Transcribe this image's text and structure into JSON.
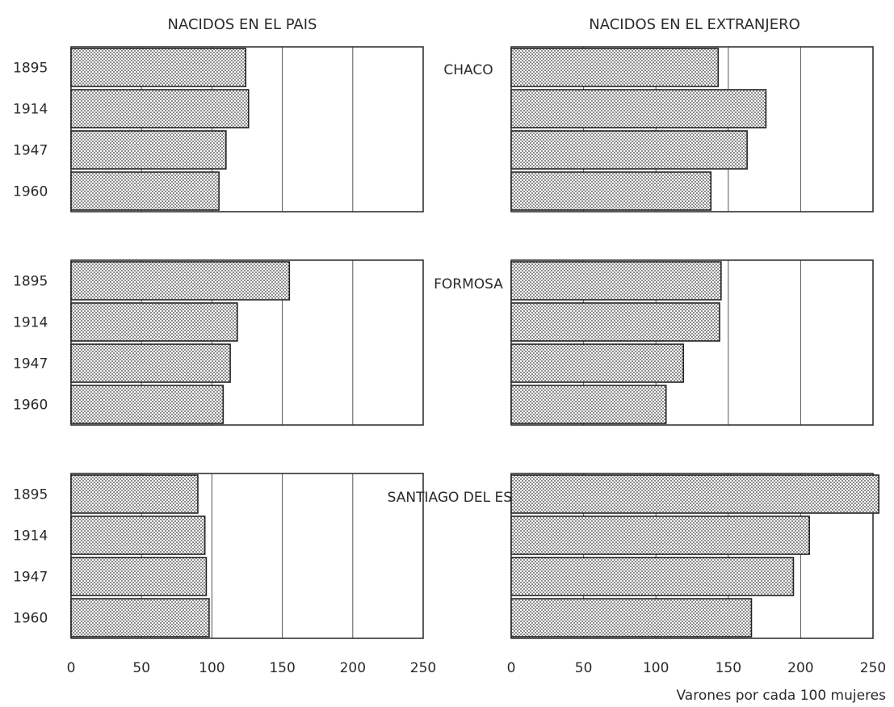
{
  "headers": {
    "left": "NACIDOS EN EL PAIS",
    "right": "NACIDOS EN EL EXTRANJERO"
  },
  "axis_note": "Varones por cada 100 mujeres",
  "colors": {
    "bar_fill": "#ffffff",
    "bar_pattern": "#3a3a3a",
    "frame": "#333333",
    "text": "#2a2a2a"
  },
  "chart_data": [
    {
      "type": "bar",
      "orientation": "horizontal",
      "province": "CHACO",
      "panel": "NACIDOS EN EL PAIS",
      "categories": [
        "1895",
        "1914",
        "1947",
        "1960"
      ],
      "values": [
        124,
        126,
        110,
        105
      ],
      "xlim": [
        0,
        250
      ],
      "xticks": [
        0,
        50,
        100,
        150,
        200,
        250
      ],
      "grid": true
    },
    {
      "type": "bar",
      "orientation": "horizontal",
      "province": "CHACO",
      "panel": "NACIDOS EN EL EXTRANJERO",
      "categories": [
        "1895",
        "1914",
        "1947",
        "1960"
      ],
      "values": [
        143,
        176,
        163,
        138
      ],
      "xlim": [
        0,
        250
      ],
      "xticks": [
        0,
        50,
        100,
        150,
        200,
        250
      ],
      "grid": true
    },
    {
      "type": "bar",
      "orientation": "horizontal",
      "province": "FORMOSA",
      "panel": "NACIDOS EN EL PAIS",
      "categories": [
        "1895",
        "1914",
        "1947",
        "1960"
      ],
      "values": [
        155,
        118,
        113,
        108
      ],
      "xlim": [
        0,
        250
      ],
      "xticks": [
        0,
        50,
        100,
        150,
        200,
        250
      ],
      "grid": true
    },
    {
      "type": "bar",
      "orientation": "horizontal",
      "province": "FORMOSA",
      "panel": "NACIDOS EN EL EXTRANJERO",
      "categories": [
        "1895",
        "1914",
        "1947",
        "1960"
      ],
      "values": [
        145,
        144,
        119,
        107
      ],
      "xlim": [
        0,
        250
      ],
      "xticks": [
        0,
        50,
        100,
        150,
        200,
        250
      ],
      "grid": true
    },
    {
      "type": "bar",
      "orientation": "horizontal",
      "province": "SANTIAGO DEL ESTERO",
      "panel": "NACIDOS EN EL PAIS",
      "categories": [
        "1895",
        "1914",
        "1947",
        "1960"
      ],
      "values": [
        90,
        95,
        96,
        98
      ],
      "xlim": [
        0,
        250
      ],
      "xticks": [
        0,
        50,
        100,
        150,
        200,
        250
      ],
      "grid": true
    },
    {
      "type": "bar",
      "orientation": "horizontal",
      "province": "SANTIAGO DEL ESTERO",
      "panel": "NACIDOS EN EL EXTRANJERO",
      "categories": [
        "1895",
        "1914",
        "1947",
        "1960"
      ],
      "values": [
        258,
        206,
        195,
        166
      ],
      "xlim": [
        0,
        250
      ],
      "xticks": [
        0,
        50,
        100,
        150,
        200,
        250
      ],
      "grid": true
    }
  ]
}
